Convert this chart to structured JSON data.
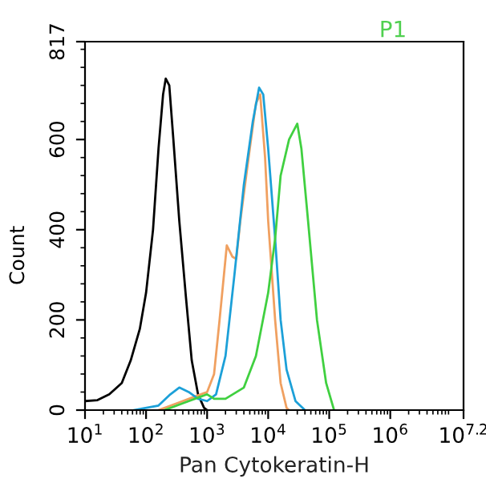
{
  "chart_data": {
    "type": "line",
    "title": "P1",
    "xlabel": "Pan Cytokeratin-H",
    "ylabel": "Count",
    "log": "x",
    "xlim": [
      10,
      15848932
    ],
    "ylim": [
      0,
      817
    ],
    "xticks": [
      {
        "value": 10,
        "label": "10$^{1}$"
      },
      {
        "value": 100,
        "label": "10$^{2}$"
      },
      {
        "value": 1000,
        "label": "10$^{3}$"
      },
      {
        "value": 10000,
        "label": "10$^{4}$"
      },
      {
        "value": 100000,
        "label": "10$^{5}$"
      },
      {
        "value": 1000000,
        "label": "10$^{6}$"
      },
      {
        "value": 15848932,
        "label": "10$^{7.2}$"
      }
    ],
    "yticks": [
      0,
      200,
      400,
      600,
      817
    ],
    "marker": "none",
    "line_style": "solid",
    "series": [
      {
        "color": "#000000",
        "x": [
          10,
          16,
          25,
          40,
          56,
          79,
          100,
          130,
          160,
          190,
          210,
          240,
          280,
          350,
          450,
          560,
          710,
          890,
          1000
        ],
        "values": [
          20,
          22,
          35,
          60,
          110,
          180,
          260,
          400,
          580,
          700,
          735,
          720,
          600,
          420,
          250,
          110,
          35,
          5,
          0
        ]
      },
      {
        "color": "#f0a060",
        "x": [
          160,
          320,
          630,
          1000,
          1300,
          1600,
          2100,
          2600,
          3000,
          3500,
          5000,
          6300,
          7400,
          8900,
          10000,
          13000,
          16000,
          20000,
          22000
        ],
        "values": [
          0,
          15,
          30,
          40,
          80,
          200,
          365,
          340,
          335,
          420,
          580,
          680,
          700,
          560,
          420,
          200,
          60,
          5,
          0
        ]
      },
      {
        "color": "#1ca0d8",
        "x": [
          63,
          160,
          250,
          350,
          500,
          710,
          1000,
          1400,
          2000,
          2800,
          4000,
          5600,
          7100,
          8300,
          10000,
          13000,
          16000,
          20000,
          28000,
          40000
        ],
        "values": [
          0,
          10,
          35,
          50,
          40,
          25,
          20,
          35,
          120,
          300,
          500,
          640,
          715,
          700,
          580,
          380,
          200,
          90,
          20,
          0
        ]
      },
      {
        "color": "#40d040",
        "x": [
          200,
          400,
          790,
          1000,
          1300,
          2000,
          4000,
          6300,
          10000,
          13000,
          16000,
          22000,
          30000,
          35000,
          45000,
          63000,
          89000,
          120000
        ],
        "values": [
          0,
          15,
          30,
          35,
          25,
          25,
          50,
          120,
          260,
          380,
          520,
          600,
          635,
          580,
          420,
          200,
          60,
          0
        ]
      }
    ]
  }
}
